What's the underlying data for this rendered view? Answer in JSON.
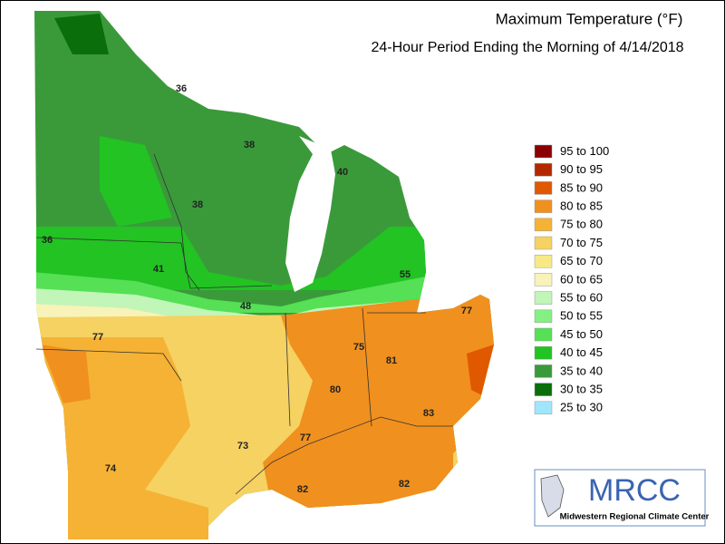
{
  "title": "Maximum Temperature (°F)",
  "subtitle": "24-Hour Period Ending the Morning of 4/14/2018",
  "legend": [
    {
      "label": "95 to 100",
      "color": "#8b0000"
    },
    {
      "label": "90 to 95",
      "color": "#b42800"
    },
    {
      "label": "85 to 90",
      "color": "#e05800"
    },
    {
      "label": "80 to 85",
      "color": "#f0901e"
    },
    {
      "label": "75 to 80",
      "color": "#f5b235"
    },
    {
      "label": "70 to 75",
      "color": "#f5d262"
    },
    {
      "label": "65 to 70",
      "color": "#f7ea85"
    },
    {
      "label": "60 to 65",
      "color": "#f8f3b8"
    },
    {
      "label": "55 to 60",
      "color": "#c2f5b8"
    },
    {
      "label": "50 to 55",
      "color": "#84f084"
    },
    {
      "label": "45 to 50",
      "color": "#55e055"
    },
    {
      "label": "40 to 45",
      "color": "#22c322"
    },
    {
      "label": "35 to 40",
      "color": "#3a9a3a"
    },
    {
      "label": "30 to 35",
      "color": "#0a6e0a"
    },
    {
      "label": "25 to 30",
      "color": "#a0e6ff"
    }
  ],
  "station_labels": [
    36,
    38,
    40,
    38,
    36,
    41,
    55,
    48,
    77,
    77,
    75,
    81,
    80,
    83,
    77,
    73,
    74,
    82,
    82
  ],
  "logo": {
    "name": "MRCC",
    "full_name": "Midwestern Regional Climate Center"
  }
}
